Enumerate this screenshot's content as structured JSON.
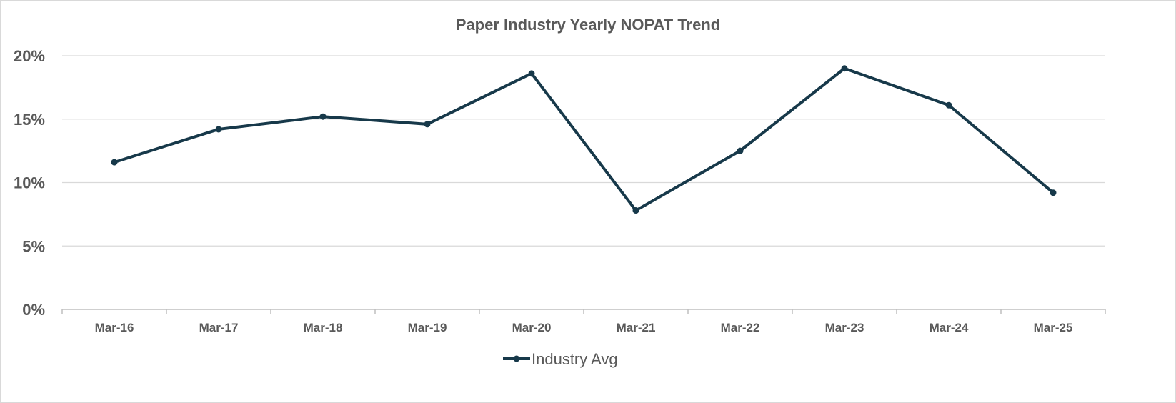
{
  "chart_data": {
    "type": "line",
    "title": "Paper Industry Yearly NOPAT  Trend",
    "xlabel": "",
    "ylabel": "",
    "categories": [
      "Mar-16",
      "Mar-17",
      "Mar-18",
      "Mar-19",
      "Mar-20",
      "Mar-21",
      "Mar-22",
      "Mar-23",
      "Mar-24",
      "Mar-25"
    ],
    "series": [
      {
        "name": "Industry Avg",
        "values": [
          11.6,
          14.2,
          15.2,
          14.6,
          18.6,
          7.8,
          12.5,
          19.0,
          16.1,
          9.2
        ],
        "color": "#17394a"
      }
    ],
    "ylim": [
      0,
      20
    ],
    "yticks": [
      0,
      5,
      10,
      15,
      20
    ],
    "ytick_labels": [
      "0%",
      "5%",
      "10%",
      "15%",
      "20%"
    ],
    "grid": true,
    "legend": "bottom-center",
    "colors": {
      "gridline": "#d9d9d9",
      "axis": "#bfbfbf",
      "text": "#595959"
    }
  }
}
